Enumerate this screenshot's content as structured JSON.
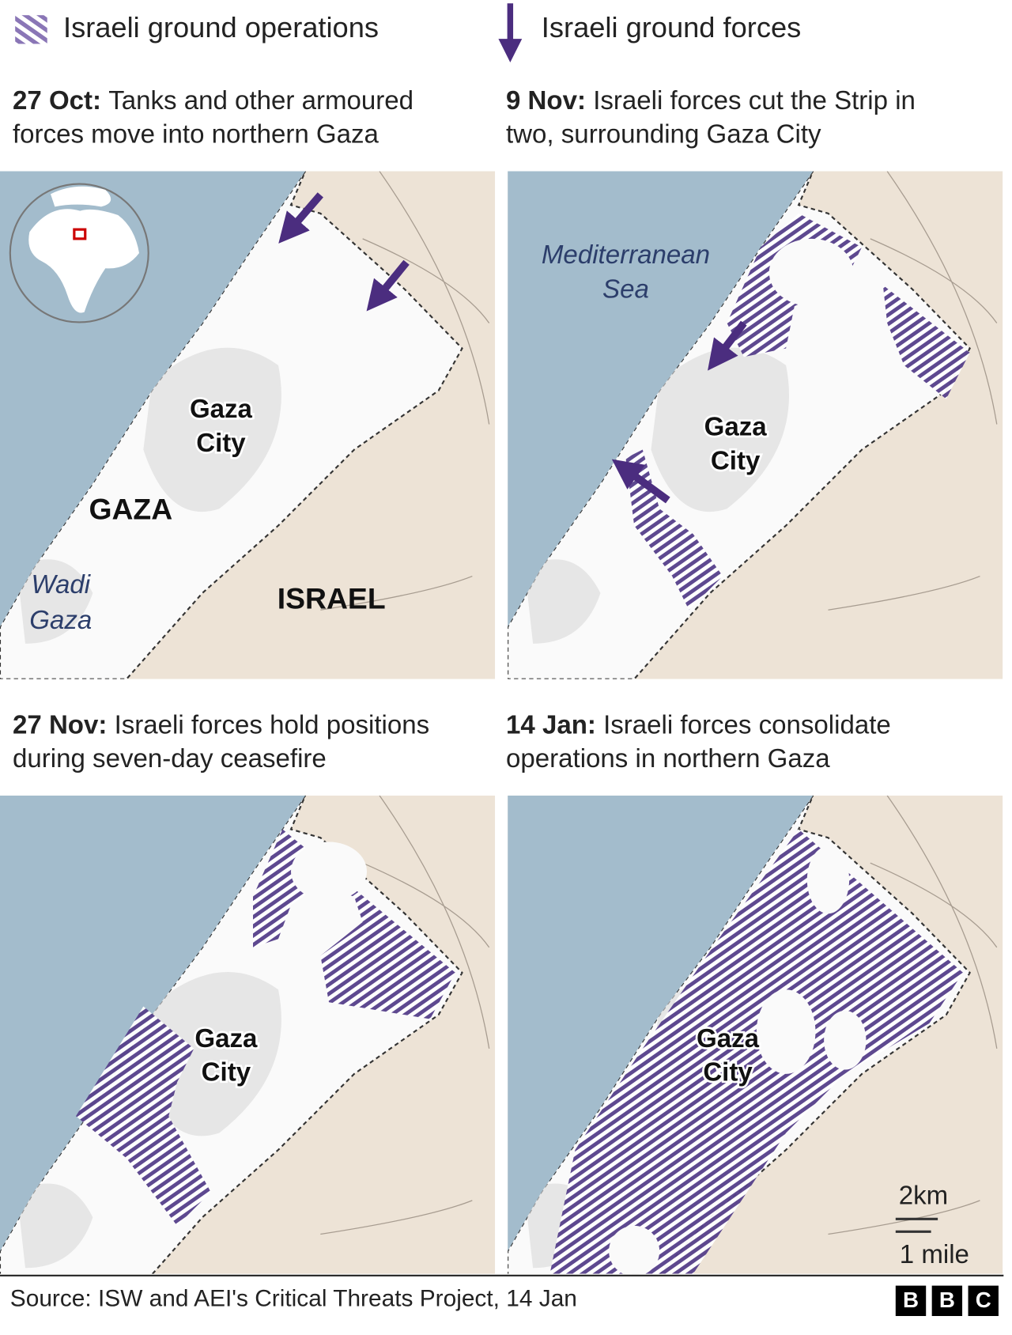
{
  "legend": {
    "operations": "Israeli ground operations",
    "forces": "Israeli ground forces"
  },
  "panels": [
    {
      "date": "27 Oct:",
      "line1": "Tanks and other armoured",
      "line2": "forces move into northern Gaza"
    },
    {
      "date": "9 Nov:",
      "line1": "Israeli forces cut the Strip in",
      "line2": "two, surrounding Gaza City"
    },
    {
      "date": "27 Nov:",
      "line1": "Israeli forces hold positions",
      "line2": "during seven-day ceasefire"
    },
    {
      "date": "14 Jan:",
      "line1": "Israeli forces consolidate",
      "line2": "operations in northern Gaza"
    }
  ],
  "map_labels": {
    "gaza_city": [
      "Gaza",
      "City"
    ],
    "gaza": "GAZA",
    "israel": "ISRAEL",
    "wadi_gaza": [
      "Wadi",
      "Gaza"
    ],
    "sea": [
      "Mediterranean",
      "Sea"
    ]
  },
  "scale": {
    "km": "2km",
    "mile": "1 mile"
  },
  "source": "Source: ISW and AEI's Critical Threats Project, 14 Jan",
  "logo": [
    "B",
    "B",
    "C"
  ]
}
